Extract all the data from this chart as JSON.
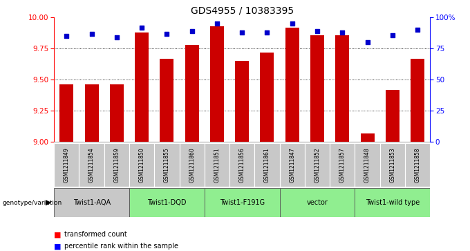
{
  "title": "GDS4955 / 10383395",
  "samples": [
    "GSM1211849",
    "GSM1211854",
    "GSM1211859",
    "GSM1211850",
    "GSM1211855",
    "GSM1211860",
    "GSM1211851",
    "GSM1211856",
    "GSM1211861",
    "GSM1211847",
    "GSM1211852",
    "GSM1211857",
    "GSM1211848",
    "GSM1211853",
    "GSM1211858"
  ],
  "bar_values": [
    9.46,
    9.46,
    9.46,
    9.88,
    9.67,
    9.78,
    9.93,
    9.65,
    9.72,
    9.92,
    9.86,
    9.86,
    9.07,
    9.42,
    9.67
  ],
  "dot_values": [
    85,
    87,
    84,
    92,
    87,
    89,
    95,
    88,
    88,
    95,
    89,
    88,
    80,
    86,
    90
  ],
  "ylim": [
    9.0,
    10.0
  ],
  "y2lim": [
    0,
    100
  ],
  "bar_color": "#cc0000",
  "dot_color": "#0000cc",
  "groups_def": [
    {
      "label": "Twist1-AQA",
      "start": 0,
      "end": 2,
      "color": "#c8c8c8"
    },
    {
      "label": "Twist1-DQD",
      "start": 3,
      "end": 5,
      "color": "#90ee90"
    },
    {
      "label": "Twist1-F191G",
      "start": 6,
      "end": 8,
      "color": "#90ee90"
    },
    {
      "label": "vector",
      "start": 9,
      "end": 11,
      "color": "#90ee90"
    },
    {
      "label": "Twist1-wild type",
      "start": 12,
      "end": 14,
      "color": "#90ee90"
    }
  ]
}
